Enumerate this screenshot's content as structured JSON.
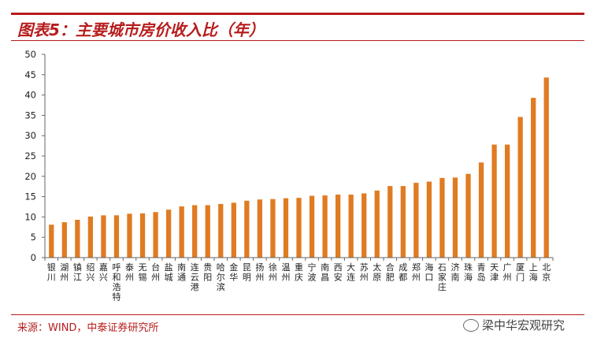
{
  "title": "图表5：主要城市房价收入比（年）",
  "source": "来源：WIND，中泰证券研究所",
  "watermark": "梁中华宏观研究",
  "colors": {
    "bar": "#e07b22",
    "accent": "#b71c1c",
    "axis": "#666666"
  },
  "chart_data": {
    "type": "bar",
    "categories": [
      "银川",
      "湖州",
      "镇江",
      "绍兴",
      "嘉兴",
      "呼和浩特",
      "泰州",
      "无锡",
      "台州",
      "盐城",
      "南通",
      "连云港",
      "贵阳",
      "哈尔滨",
      "金华",
      "昆明",
      "扬州",
      "徐州",
      "温州",
      "重庆",
      "宁波",
      "南昌",
      "西安",
      "大连",
      "苏州",
      "太原",
      "合肥",
      "成都",
      "郑州",
      "海口",
      "石家庄",
      "济南",
      "珠海",
      "青岛",
      "天津",
      "广州",
      "厦门",
      "上海",
      "北京"
    ],
    "values": [
      8.1,
      8.7,
      9.3,
      10.1,
      10.4,
      10.4,
      10.8,
      10.9,
      11.2,
      11.8,
      12.6,
      12.9,
      12.9,
      13.2,
      13.5,
      14.0,
      14.3,
      14.4,
      14.6,
      14.7,
      15.2,
      15.3,
      15.5,
      15.5,
      15.8,
      16.5,
      17.6,
      17.6,
      18.4,
      18.7,
      19.6,
      19.7,
      20.6,
      23.4,
      27.8,
      27.8,
      34.6,
      39.3,
      44.3
    ],
    "yticks": [
      "0",
      "5",
      "10",
      "15",
      "20",
      "25",
      "30",
      "35",
      "40",
      "45",
      "50"
    ],
    "ylim": [
      0,
      50
    ],
    "grid": false,
    "legend": "none"
  }
}
